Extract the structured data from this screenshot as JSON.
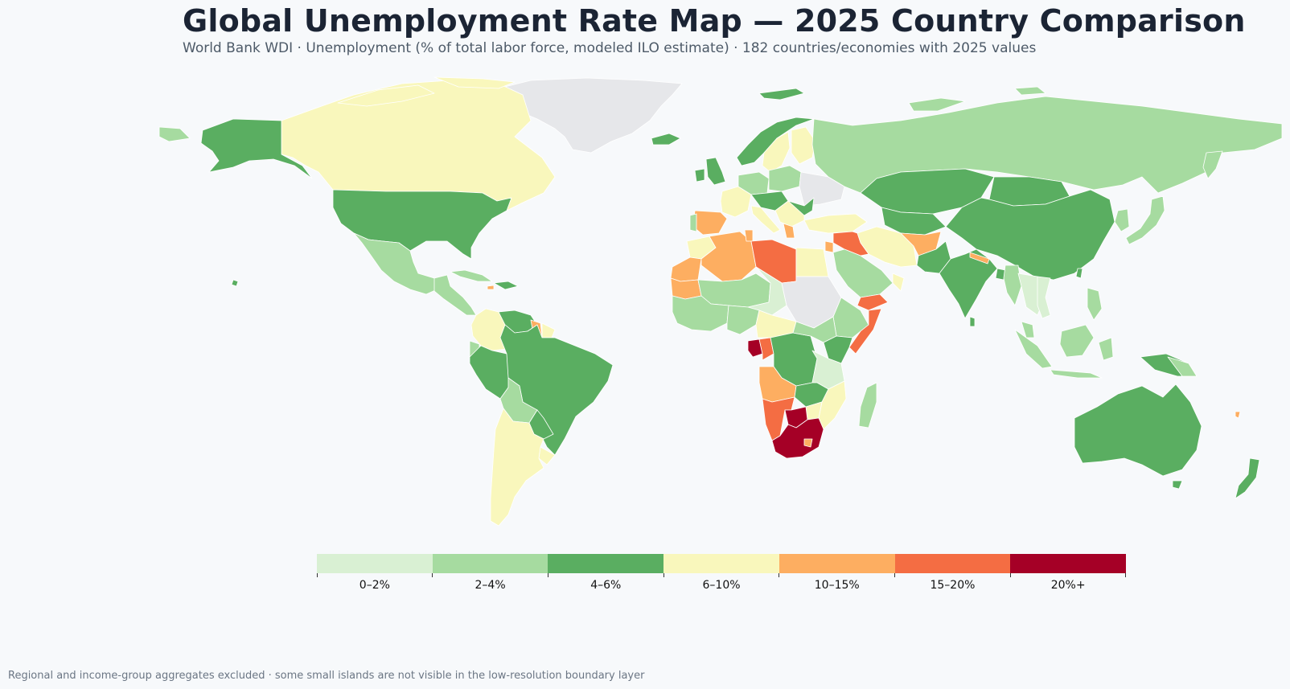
{
  "title": "Global Unemployment Rate Map — 2025 Country Comparison",
  "subtitle": "World Bank WDI · Unemployment (% of total labor force, modeled ILO estimate) · 182 countries/economies with 2025 values",
  "footnote": "Regional and income-group aggregates excluded · some small islands are not visible in the low-resolution boundary layer",
  "colors": {
    "c0": "#d9f0d3",
    "c1": "#a6dba0",
    "c2": "#5aae61",
    "c3": "#f9f7bc",
    "c4": "#fdae61",
    "c5": "#f46d43",
    "c6": "#a50026",
    "nodata": "#e6e7ea"
  },
  "legend": [
    {
      "label": "0–2%",
      "color": "#d9f0d3"
    },
    {
      "label": "2–4%",
      "color": "#a6dba0"
    },
    {
      "label": "4–6%",
      "color": "#5aae61"
    },
    {
      "label": "6–10%",
      "color": "#f9f7bc"
    },
    {
      "label": "10–15%",
      "color": "#fdae61"
    },
    {
      "label": "15–20%",
      "color": "#f46d43"
    },
    {
      "label": "20%+",
      "color": "#a50026"
    }
  ]
}
